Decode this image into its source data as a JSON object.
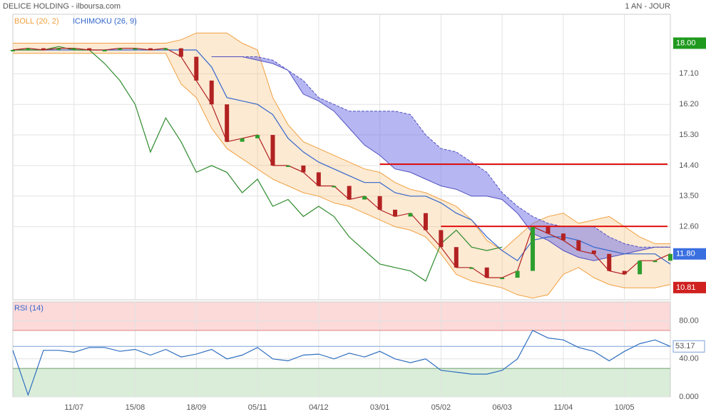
{
  "chart_data": [
    {
      "type": "candlestick",
      "title": "DELICE HOLDING - ilboursa.com",
      "subtitle": "1 AN - JOUR",
      "categories": [
        null,
        null,
        null,
        null,
        "11/07",
        null,
        null,
        null,
        "15/08",
        null,
        null,
        null,
        "18/09",
        null,
        null,
        null,
        "05/11",
        null,
        null,
        null,
        "04/12",
        null,
        null,
        null,
        "03/01",
        null,
        null,
        null,
        "05/02",
        null,
        null,
        null,
        "06/03",
        null,
        null,
        null,
        "11/04",
        null,
        null,
        null,
        "10/05",
        null,
        null,
        null
      ],
      "series": [
        {
          "color": "#b22222",
          "up_color": "#2e9e2e",
          "values": [
            17.8,
            17.85,
            17.8,
            17.85,
            17.85,
            17.8,
            17.8,
            17.85,
            17.85,
            17.8,
            17.85,
            17.6,
            16.9,
            16.2,
            15.1,
            15.2,
            15.3,
            14.4,
            14.4,
            14.2,
            13.8,
            13.8,
            13.4,
            13.5,
            13.1,
            12.9,
            13.0,
            12.5,
            12.0,
            11.4,
            11.4,
            11.1,
            11.1,
            11.3,
            12.6,
            12.4,
            12.2,
            11.9,
            11.8,
            11.3,
            11.2,
            11.6,
            11.6,
            11.8
          ]
        }
      ],
      "indicators": [
        {
          "name": "BOLL (20, 2)",
          "color": "#f0a040",
          "fill": "rgba(250,195,130,0.35)",
          "upper": [
            18.0,
            18.0,
            18.0,
            18.0,
            18.0,
            18.0,
            18.0,
            18.0,
            18.0,
            18.0,
            18.0,
            18.1,
            18.3,
            18.3,
            18.3,
            18.0,
            17.8,
            16.4,
            15.6,
            15.1,
            14.9,
            14.7,
            14.5,
            14.3,
            14.2,
            13.9,
            13.7,
            13.6,
            13.4,
            13.2,
            12.8,
            12.2,
            11.9,
            12.3,
            12.7,
            12.9,
            13.0,
            12.7,
            12.8,
            12.9,
            12.6,
            12.3,
            12.1,
            12.1
          ],
          "lower": [
            17.7,
            17.7,
            17.7,
            17.7,
            17.7,
            17.7,
            17.7,
            17.7,
            17.7,
            17.7,
            17.7,
            16.8,
            16.4,
            15.5,
            14.9,
            14.6,
            14.3,
            14.0,
            13.8,
            13.6,
            13.5,
            13.3,
            13.2,
            13.0,
            12.8,
            12.6,
            12.5,
            12.3,
            11.8,
            11.2,
            11.0,
            10.9,
            10.8,
            10.6,
            10.5,
            10.6,
            11.2,
            11.4,
            11.1,
            10.9,
            10.8,
            10.8,
            10.8,
            10.9
          ]
        },
        {
          "name": "ICHIMOKU (26, 9)",
          "color": "#3366cc",
          "chikou_color": "#2e8b2e",
          "cloud_color": "rgba(110,110,230,0.5)",
          "kijun": [
            17.8,
            17.8,
            17.8,
            17.8,
            17.8,
            17.8,
            17.8,
            17.8,
            17.8,
            17.8,
            17.8,
            17.8,
            17.8,
            17.3,
            16.4,
            16.3,
            16.2,
            15.9,
            15.2,
            14.8,
            14.5,
            14.3,
            14.1,
            13.9,
            13.9,
            13.6,
            13.5,
            13.5,
            13.3,
            13.0,
            12.8,
            12.3,
            11.9,
            11.6,
            12.2,
            12.3,
            12.3,
            12.2,
            12.0,
            11.9,
            11.8,
            11.8,
            11.8,
            11.5
          ],
          "chikou": [
            17.8,
            17.8,
            17.8,
            17.9,
            17.8,
            17.8,
            17.4,
            16.9,
            16.2,
            14.8,
            15.8,
            15.1,
            14.2,
            14.4,
            14.2,
            13.6,
            14.0,
            13.2,
            13.4,
            12.9,
            13.2,
            12.9,
            12.3,
            11.9,
            11.5,
            11.4,
            11.3,
            11.0,
            12.1,
            12.5,
            12.0,
            11.9,
            12.0,
            null,
            null,
            null,
            null,
            null,
            null,
            null,
            null,
            null,
            null,
            null
          ],
          "senkou_a": [
            null,
            null,
            null,
            null,
            null,
            null,
            null,
            null,
            null,
            null,
            null,
            null,
            null,
            17.6,
            17.6,
            17.6,
            17.5,
            17.4,
            17.2,
            16.5,
            16.3,
            16.0,
            15.5,
            15.0,
            14.7,
            14.3,
            14.2,
            14.0,
            13.8,
            13.7,
            13.5,
            13.5,
            13.4,
            13.0,
            12.4,
            12.2,
            11.9,
            11.7,
            11.6,
            11.7,
            11.8,
            11.9,
            12.0,
            12.0
          ],
          "senkou_b": [
            null,
            null,
            null,
            null,
            null,
            null,
            null,
            null,
            null,
            null,
            null,
            null,
            null,
            17.6,
            17.6,
            17.6,
            17.6,
            17.5,
            17.2,
            16.9,
            16.4,
            16.2,
            16.0,
            16.0,
            16.0,
            16.0,
            15.9,
            15.3,
            14.9,
            14.8,
            14.5,
            14.2,
            13.6,
            13.2,
            12.9,
            12.7,
            12.6,
            12.6,
            12.6,
            12.3,
            12.1,
            12.0,
            12.0,
            12.0
          ]
        }
      ],
      "levels": [
        {
          "value": 14.44,
          "from": 24,
          "color": "#e01010"
        },
        {
          "value": 12.61,
          "from": 28,
          "color": "#e01010"
        }
      ],
      "markers": [
        {
          "value": 18.0,
          "label": "18.00",
          "color": "#1f9a1f"
        },
        {
          "value": 11.8,
          "label": "11.80",
          "color": "#3a6fe0"
        },
        {
          "value": 10.81,
          "label": "10.81",
          "color": "#d02020"
        }
      ],
      "ylim": [
        10.45,
        18.85
      ],
      "yticks": [
        {
          "value": 17.1,
          "label": "17.10"
        },
        {
          "value": 16.2,
          "label": "16.20"
        },
        {
          "value": 15.3,
          "label": "15.30"
        },
        {
          "value": 14.4,
          "label": "14.40"
        },
        {
          "value": 13.5,
          "label": "13.50"
        },
        {
          "value": 12.6,
          "label": "12.60"
        }
      ],
      "grid": true
    },
    {
      "type": "line",
      "title": "RSI (14)",
      "series": [
        {
          "color": "#2f6fc0",
          "values": [
            49,
            2,
            49,
            49,
            47,
            52,
            52,
            48,
            50,
            44,
            50,
            42,
            45,
            50,
            40,
            44,
            52,
            40,
            38,
            44,
            45,
            40,
            46,
            42,
            48,
            40,
            36,
            40,
            28,
            26,
            24,
            24,
            28,
            40,
            70,
            62,
            60,
            52,
            48,
            38,
            48,
            56,
            60,
            53.17
          ]
        }
      ],
      "current": {
        "value": 53.17,
        "label": "53.17"
      },
      "zones": [
        {
          "from": 70,
          "to": 100,
          "color": "#fcdada",
          "line": "#e08080"
        },
        {
          "from": 0,
          "to": 30,
          "color": "#d9edd9",
          "line": "#70a070"
        }
      ],
      "ylim": [
        0,
        100
      ],
      "yticks": [
        {
          "value": 0,
          "label": "0.000"
        },
        {
          "value": 40,
          "label": "40.00"
        },
        {
          "value": 80,
          "label": "80.00"
        }
      ],
      "grid": true
    }
  ]
}
